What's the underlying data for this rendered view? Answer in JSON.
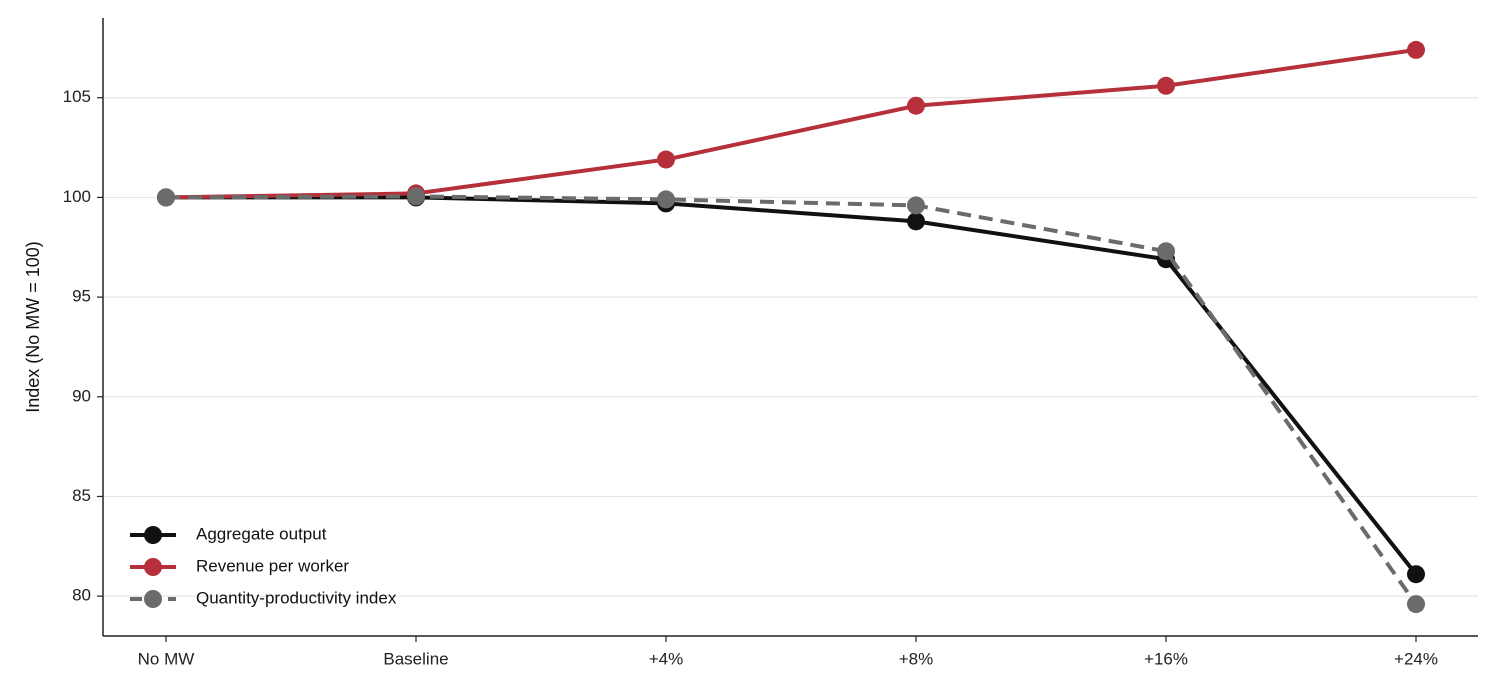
{
  "chart_data": {
    "type": "line",
    "title": "",
    "xlabel": "",
    "ylabel": "Index (No MW = 100)",
    "categories": [
      "No MW",
      "Baseline",
      "+4%",
      "+8%",
      "+16%",
      "+24%"
    ],
    "yticks": [
      80,
      85,
      90,
      95,
      100,
      105
    ],
    "ylim": [
      78,
      109
    ],
    "grid": "horizontal",
    "legend_position": "bottom-left",
    "series": [
      {
        "name": "Aggregate output",
        "values": [
          100,
          100,
          99.7,
          98.8,
          96.9,
          81.1
        ],
        "color": "#111111",
        "dash": "solid"
      },
      {
        "name": "Revenue per worker",
        "values": [
          100,
          100.2,
          101.9,
          104.6,
          105.6,
          107.4
        ],
        "color": "#b5303a",
        "dash": "solid"
      },
      {
        "name": "Quantity-productivity index",
        "values": [
          100,
          100.05,
          99.9,
          99.6,
          97.3,
          79.6
        ],
        "color": "#6b6b6b",
        "dash": "dashed"
      }
    ]
  }
}
